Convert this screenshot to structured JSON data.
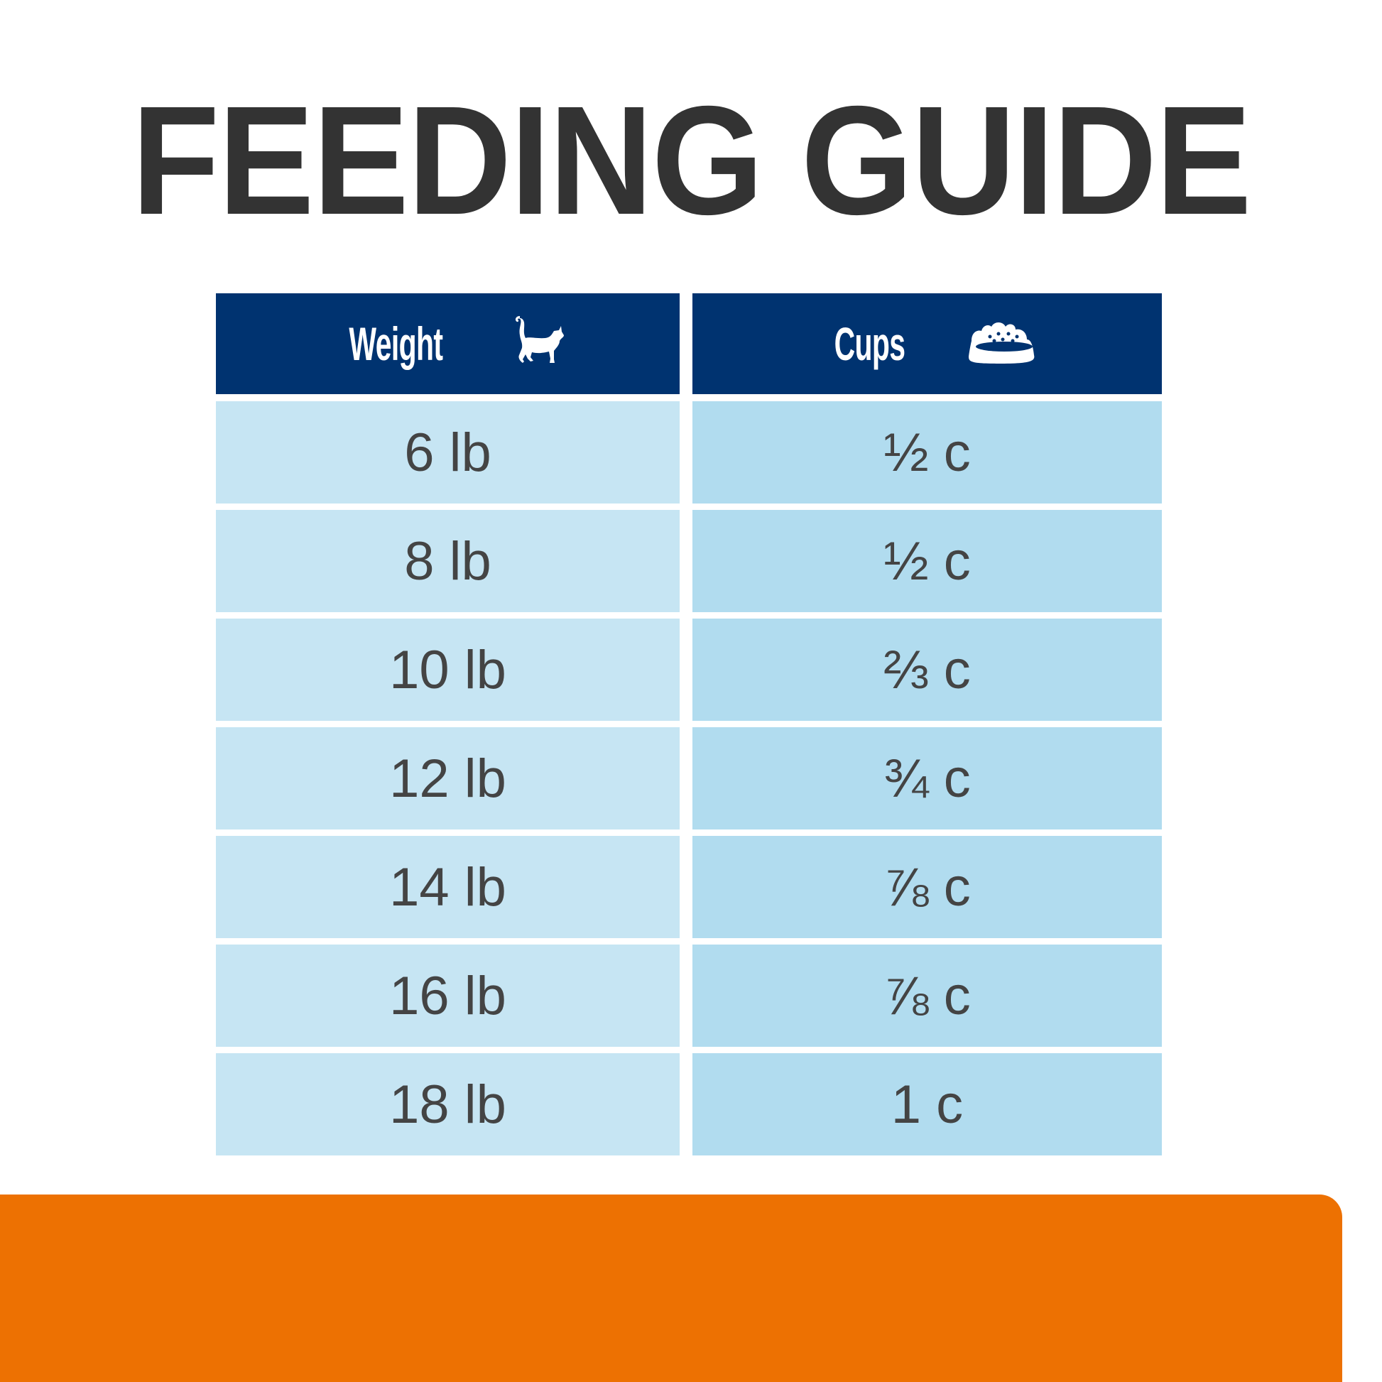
{
  "title": "FEEDING GUIDE",
  "table": {
    "headers": [
      {
        "label": "Weight",
        "icon": "cat-icon"
      },
      {
        "label": "Cups",
        "icon": "food-bowl-icon"
      }
    ],
    "rows": [
      {
        "weight": "6 lb",
        "cups": "½ c"
      },
      {
        "weight": "8 lb",
        "cups": "½ c"
      },
      {
        "weight": "10 lb",
        "cups": "⅔ c"
      },
      {
        "weight": "12 lb",
        "cups": "¾ c"
      },
      {
        "weight": "14 lb",
        "cups": "⅞ c"
      },
      {
        "weight": "16 lb",
        "cups": "⅞ c"
      },
      {
        "weight": "18 lb",
        "cups": "1 c"
      }
    ]
  },
  "colors": {
    "header": "#003370",
    "weight_cell": "#c6e5f3",
    "cups_cell": "#b1dcef",
    "footer": "#ed7102"
  }
}
